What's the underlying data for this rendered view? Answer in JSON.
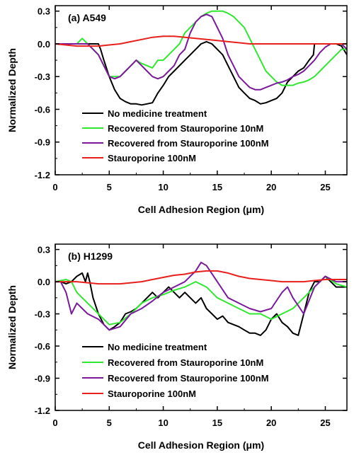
{
  "chart_data": [
    {
      "type": "line",
      "panel_label": "(a) A549",
      "xlabel": "Cell Adhesion Region (μm)",
      "ylabel": "Normalized Depth",
      "xlim": [
        0,
        27
      ],
      "ylim": [
        -1.2,
        0.35
      ],
      "xticks": [
        0,
        5,
        10,
        15,
        20,
        25
      ],
      "xtick_labels": [
        "0",
        "5",
        "10",
        "15",
        "20",
        "25"
      ],
      "yticks": [
        0.3,
        0.0,
        -0.3,
        -0.6,
        -0.9,
        -1.2
      ],
      "ytick_labels": [
        "0.3",
        "0.0",
        "-0.3",
        "-0.6",
        "-0.9",
        "-1.2"
      ],
      "legend_position": "lower-left",
      "series": [
        {
          "name": "No medicine treatment",
          "color": "#000000",
          "x": [
            0,
            1,
            2,
            3,
            4,
            4.2,
            4.5,
            5,
            5.5,
            6,
            6.5,
            7,
            7.5,
            8,
            8.5,
            9,
            9.5,
            10,
            10.5,
            11,
            11.5,
            12,
            12.5,
            13,
            13.5,
            14,
            14.5,
            15,
            15.5,
            16,
            16.5,
            17,
            17.5,
            18,
            18.5,
            19,
            19.5,
            20,
            20.5,
            21,
            21.5,
            22,
            22.5,
            23,
            23.5,
            23.9,
            24,
            24.5,
            25,
            25.5,
            26,
            26.5,
            27
          ],
          "y": [
            0.0,
            0.0,
            0.0,
            0.0,
            0.0,
            -0.05,
            -0.15,
            -0.3,
            -0.42,
            -0.5,
            -0.53,
            -0.55,
            -0.55,
            -0.56,
            -0.55,
            -0.54,
            -0.45,
            -0.38,
            -0.3,
            -0.25,
            -0.2,
            -0.15,
            -0.1,
            -0.05,
            0.0,
            0.02,
            0.0,
            -0.05,
            -0.1,
            -0.2,
            -0.3,
            -0.4,
            -0.45,
            -0.5,
            -0.52,
            -0.55,
            -0.54,
            -0.52,
            -0.5,
            -0.45,
            -0.35,
            -0.3,
            -0.25,
            -0.22,
            -0.15,
            -0.1,
            0.0,
            0.0,
            0.0,
            0.0,
            0.0,
            -0.02,
            -0.1
          ]
        },
        {
          "name": "Recovered from Stauroporine 10nM",
          "color": "#2fe82f",
          "x": [
            0,
            1,
            2,
            2.5,
            3,
            3.5,
            4,
            4.5,
            5,
            5.5,
            6,
            6.5,
            7,
            7.5,
            8,
            8.5,
            9,
            9.5,
            10,
            10.5,
            11,
            11.5,
            12,
            12.5,
            13,
            13.5,
            14,
            14.5,
            15,
            15.5,
            16,
            16.5,
            17,
            17.5,
            18,
            18.5,
            19,
            19.5,
            20,
            20.5,
            21,
            21.5,
            22,
            22.5,
            23,
            23.5,
            24,
            24.5,
            25,
            25.5,
            26,
            26.5,
            27
          ],
          "y": [
            0.0,
            0.0,
            0.0,
            0.05,
            0.0,
            -0.05,
            -0.1,
            -0.2,
            -0.3,
            -0.3,
            -0.3,
            -0.25,
            -0.2,
            -0.15,
            -0.18,
            -0.2,
            -0.22,
            -0.15,
            -0.15,
            -0.1,
            -0.05,
            0.0,
            0.1,
            0.15,
            0.2,
            0.25,
            0.28,
            0.3,
            0.3,
            0.3,
            0.28,
            0.25,
            0.2,
            0.15,
            0.05,
            -0.05,
            -0.15,
            -0.25,
            -0.3,
            -0.35,
            -0.38,
            -0.38,
            -0.38,
            -0.36,
            -0.35,
            -0.33,
            -0.3,
            -0.25,
            -0.2,
            -0.15,
            -0.1,
            -0.05,
            -0.05
          ]
        },
        {
          "name": "Recovered from Stauroporine 100nM",
          "color": "#7a1a9a",
          "x": [
            0,
            1,
            2,
            3,
            3.5,
            4,
            4.5,
            5,
            5.5,
            6,
            6.5,
            7,
            7.5,
            8,
            8.5,
            9,
            9.5,
            10,
            10.5,
            11,
            11.5,
            12,
            12.5,
            13,
            13.5,
            14,
            14.5,
            15,
            15.5,
            16,
            16.5,
            17,
            17.5,
            18,
            18.5,
            19,
            19.5,
            20,
            20.5,
            21,
            21.5,
            22,
            22.5,
            23,
            23.5,
            24,
            24.5,
            25,
            25.5,
            26,
            26.5,
            27
          ],
          "y": [
            0.0,
            0.0,
            0.0,
            0.0,
            -0.05,
            -0.1,
            -0.2,
            -0.3,
            -0.32,
            -0.3,
            -0.25,
            -0.2,
            -0.15,
            -0.2,
            -0.25,
            -0.3,
            -0.32,
            -0.3,
            -0.25,
            -0.2,
            -0.1,
            -0.05,
            0.1,
            0.2,
            0.25,
            0.27,
            0.25,
            0.15,
            0.05,
            -0.1,
            -0.2,
            -0.3,
            -0.35,
            -0.4,
            -0.42,
            -0.42,
            -0.4,
            -0.38,
            -0.36,
            -0.35,
            -0.33,
            -0.3,
            -0.28,
            -0.25,
            -0.2,
            -0.15,
            -0.08,
            -0.03,
            0.0,
            0.0,
            0.0,
            -0.05
          ]
        },
        {
          "name": "Stauroporine 100nM",
          "color": "#e8201c",
          "x": [
            0,
            2,
            4,
            5,
            6,
            7,
            8,
            9,
            10,
            11,
            12,
            13,
            14,
            15,
            16,
            17,
            18,
            19,
            20,
            21,
            22,
            23,
            24,
            25,
            26,
            27
          ],
          "y": [
            0.0,
            -0.02,
            -0.02,
            -0.01,
            0.0,
            0.02,
            0.04,
            0.06,
            0.07,
            0.07,
            0.06,
            0.05,
            0.04,
            0.03,
            0.02,
            0.01,
            0.0,
            0.0,
            0.0,
            0.0,
            0.0,
            0.0,
            0.0,
            0.0,
            0.0,
            0.0
          ]
        }
      ]
    },
    {
      "type": "line",
      "panel_label": "(b) H1299",
      "xlabel": "Cell Adhesion Region (μm)",
      "ylabel": "Normalized Depth",
      "xlim": [
        0,
        27
      ],
      "ylim": [
        -1.2,
        0.35
      ],
      "xticks": [
        0,
        5,
        10,
        15,
        20,
        25
      ],
      "xtick_labels": [
        "0",
        "5",
        "10",
        "15",
        "20",
        "25"
      ],
      "yticks": [
        0.3,
        0.0,
        -0.3,
        -0.6,
        -0.9,
        -1.2
      ],
      "ytick_labels": [
        "0.3",
        "0.0",
        "-0.3",
        "-0.6",
        "-0.9",
        "-1.2"
      ],
      "legend_position": "lower-left",
      "series": [
        {
          "name": "No medicine treatment",
          "color": "#000000",
          "x": [
            0,
            0.5,
            1,
            1.5,
            2,
            2.5,
            2.8,
            3,
            3.2,
            3.5,
            4,
            4.5,
            5,
            5.5,
            6,
            6.5,
            7,
            7.5,
            8,
            8.5,
            9,
            9.5,
            10,
            10.5,
            11,
            11.5,
            12,
            12.5,
            13,
            13.5,
            14,
            14.5,
            15,
            15.5,
            16,
            16.5,
            17,
            17.5,
            18,
            18.5,
            19,
            19.5,
            20,
            20.5,
            21,
            21.5,
            22,
            22.5,
            23,
            23.5,
            24,
            24.5,
            25,
            25.5,
            26,
            26.5,
            27
          ],
          "y": [
            0.0,
            0.0,
            -0.02,
            0.0,
            0.05,
            0.08,
            0.0,
            0.08,
            0.0,
            -0.15,
            -0.3,
            -0.4,
            -0.45,
            -0.42,
            -0.38,
            -0.3,
            -0.28,
            -0.25,
            -0.2,
            -0.15,
            -0.1,
            -0.15,
            -0.1,
            -0.05,
            -0.1,
            -0.15,
            -0.1,
            -0.15,
            -0.2,
            -0.15,
            -0.25,
            -0.3,
            -0.35,
            -0.32,
            -0.38,
            -0.4,
            -0.42,
            -0.45,
            -0.48,
            -0.48,
            -0.5,
            -0.45,
            -0.35,
            -0.3,
            -0.38,
            -0.42,
            -0.48,
            -0.5,
            -0.3,
            -0.1,
            0.0,
            0.0,
            0.05,
            0.0,
            -0.05,
            -0.05,
            -0.05
          ]
        },
        {
          "name": "Recovered from Stauroporine 10nM",
          "color": "#2fe82f",
          "x": [
            0,
            1,
            1.5,
            2,
            3,
            4,
            5,
            6,
            7,
            8,
            9,
            10,
            11,
            12,
            13,
            14,
            15,
            16,
            17,
            18,
            19,
            20,
            21,
            22,
            23,
            24,
            25,
            26,
            27
          ],
          "y": [
            0.0,
            0.02,
            0.0,
            -0.1,
            -0.2,
            -0.3,
            -0.4,
            -0.38,
            -0.3,
            -0.2,
            -0.15,
            -0.12,
            -0.08,
            -0.05,
            0.0,
            -0.05,
            -0.15,
            -0.2,
            -0.25,
            -0.3,
            -0.3,
            -0.35,
            -0.3,
            -0.25,
            -0.15,
            -0.05,
            0.05,
            -0.02,
            -0.05
          ]
        },
        {
          "name": "Recovered from Stauroporine 100nM",
          "color": "#7a1a9a",
          "x": [
            0,
            0.5,
            1,
            1.5,
            2,
            3,
            4,
            5,
            6,
            7,
            8,
            9,
            10,
            11,
            12,
            13,
            13.5,
            14,
            15,
            16,
            17,
            18,
            19,
            20,
            21,
            21.5,
            22,
            23,
            24,
            25,
            26,
            27
          ],
          "y": [
            0.0,
            0.0,
            -0.1,
            -0.3,
            -0.2,
            -0.3,
            -0.35,
            -0.45,
            -0.42,
            -0.3,
            -0.25,
            -0.18,
            -0.1,
            -0.05,
            0.0,
            0.1,
            0.18,
            0.15,
            0.0,
            -0.15,
            -0.2,
            -0.25,
            -0.28,
            -0.25,
            -0.1,
            -0.05,
            -0.15,
            -0.3,
            -0.05,
            0.05,
            0.0,
            0.0
          ]
        },
        {
          "name": "Stauroporine 100nM",
          "color": "#e8201c",
          "x": [
            0,
            2,
            4,
            6,
            7,
            8,
            9,
            10,
            11,
            12,
            13,
            14,
            15,
            16,
            17,
            18,
            19,
            20,
            21,
            22,
            23,
            24,
            25,
            26,
            27
          ],
          "y": [
            0.0,
            0.0,
            -0.02,
            -0.02,
            -0.01,
            0.0,
            0.02,
            0.04,
            0.06,
            0.07,
            0.09,
            0.1,
            0.1,
            0.08,
            0.05,
            0.03,
            0.02,
            0.01,
            0.0,
            0.0,
            0.0,
            0.01,
            0.02,
            0.02,
            0.02
          ]
        }
      ]
    }
  ]
}
